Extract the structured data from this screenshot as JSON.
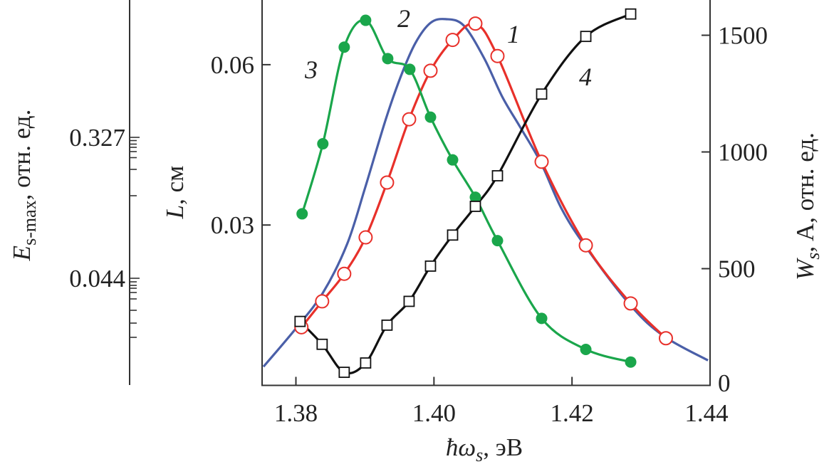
{
  "chart_data": {
    "type": "line",
    "title": "",
    "xlabel": {
      "main": "ħω",
      "sub": "s",
      "rest": ", эВ"
    },
    "ylabel_left": {
      "main": "L",
      "rest": ", см"
    },
    "ylabel_right": {
      "main": "W",
      "sub": "s",
      "rest": ", A, отн. ед."
    },
    "ylabel_far_left": {
      "main": "E",
      "sub": "s-max",
      "rest": ", отн. ед."
    },
    "xlim": [
      1.3751,
      1.44
    ],
    "ylim_left": [
      0,
      0.0721
    ],
    "ylim_right": [
      0,
      1651
    ],
    "x_ticks": [
      {
        "value": 1.38,
        "label": "1.38"
      },
      {
        "value": 1.4,
        "label": "1.40"
      },
      {
        "value": 1.42,
        "label": "1.42"
      },
      {
        "value": 1.44,
        "label": "1.44"
      }
    ],
    "y_left_ticks": [
      {
        "value": 0.03,
        "label": "0.03"
      },
      {
        "value": 0.06,
        "label": "0.06"
      }
    ],
    "y_right_ticks": [
      {
        "value": 0,
        "label": "0"
      },
      {
        "value": 500,
        "label": "500"
      },
      {
        "value": 1000,
        "label": "1000"
      },
      {
        "value": 1500,
        "label": "1500"
      }
    ],
    "y_far_left_ticks": [
      {
        "value": 0.327,
        "label": "0.327"
      },
      {
        "value": 0.044,
        "label": "0.044"
      }
    ],
    "grid": false,
    "series_units": "right-axis scale",
    "series": [
      {
        "name": "1",
        "color": "#e8302a",
        "marker": "open-circle",
        "x": [
          1.3808,
          1.3838,
          1.387,
          1.3901,
          1.3932,
          1.3964,
          1.3995,
          1.4027,
          1.406,
          1.4092,
          1.4156,
          1.422,
          1.4285,
          1.4336
        ],
        "y": [
          249,
          360,
          478,
          634,
          869,
          1140,
          1348,
          1480,
          1550,
          1411,
          958,
          600,
          351,
          202
        ]
      },
      {
        "name": "2",
        "color": "#4a5fa8",
        "marker": "none",
        "x": [
          1.3753,
          1.38,
          1.3839,
          1.3874,
          1.39,
          1.393,
          1.3952,
          1.3973,
          1.3995,
          1.4017,
          1.4043,
          1.4073,
          1.4099,
          1.4125,
          1.4155,
          1.4185,
          1.422,
          1.4285,
          1.4333,
          1.4397
        ],
        "y": [
          80,
          244,
          396,
          604,
          844,
          1138,
          1324,
          1466,
          1553,
          1569,
          1542,
          1400,
          1236,
          1106,
          953,
          756,
          593,
          342,
          211,
          107
        ]
      },
      {
        "name": "3",
        "color": "#1aa64b",
        "marker": "filled-circle",
        "x": [
          1.3809,
          1.3839,
          1.387,
          1.3901,
          1.3933,
          1.3965,
          1.3995,
          1.4027,
          1.406,
          1.4092,
          1.4156,
          1.422,
          1.4285
        ],
        "y": [
          735,
          1035,
          1449,
          1564,
          1400,
          1354,
          1149,
          966,
          806,
          620,
          287,
          154,
          100
        ]
      },
      {
        "name": "4",
        "color": "#111111",
        "marker": "open-square",
        "x": [
          1.3806,
          1.3838,
          1.387,
          1.3901,
          1.3932,
          1.3964,
          1.3995,
          1.4027,
          1.406,
          1.4092,
          1.4156,
          1.422,
          1.4285
        ],
        "y": [
          274,
          176,
          56,
          96,
          258,
          360,
          511,
          644,
          767,
          898,
          1248,
          1495,
          1591
        ]
      }
    ],
    "annotations": [
      "1",
      "2",
      "3",
      "4"
    ]
  }
}
